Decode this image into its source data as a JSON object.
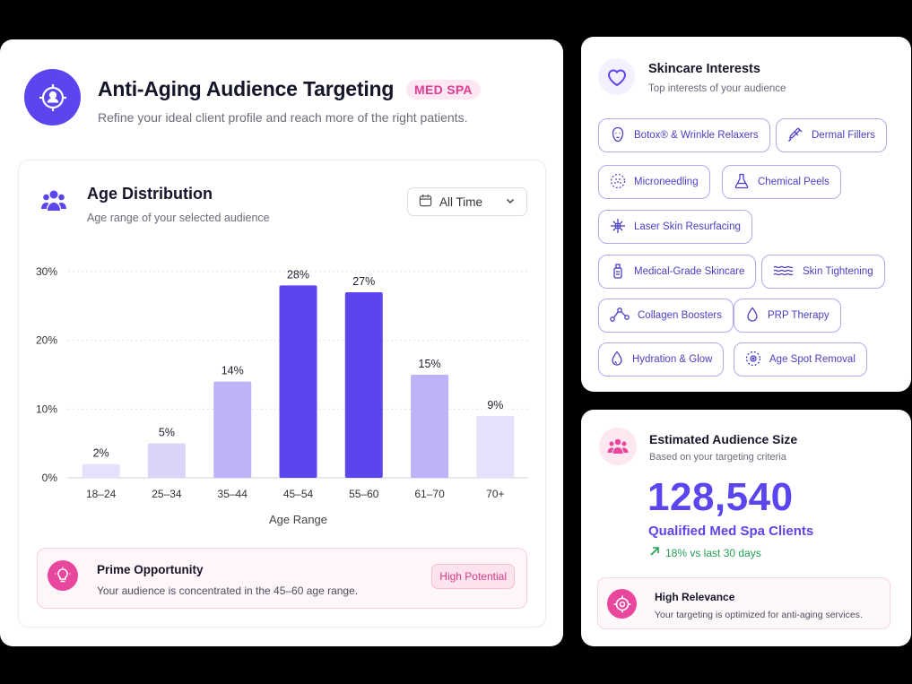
{
  "header": {
    "title": "Anti-Aging Audience Targeting",
    "badge": "MED SPA",
    "subtitle": "Refine your ideal client profile and reach more of the right patients.",
    "icon": "target-user-icon"
  },
  "age_panel": {
    "title": "Age Distribution",
    "subtitle": "Age range of your selected audience",
    "dropdown_value": "All Time",
    "icon": "users-icon"
  },
  "chart_data": {
    "type": "bar",
    "categories": [
      "18–24",
      "25–34",
      "35–44",
      "45–54",
      "55–60",
      "61–70",
      "70+"
    ],
    "values": [
      2,
      5,
      14,
      28,
      27,
      15,
      9
    ],
    "value_labels": [
      "2%",
      "5%",
      "14%",
      "28%",
      "27%",
      "15%",
      "9%"
    ],
    "xlabel": "Age Range",
    "ylabel": "",
    "ylim": [
      0,
      30
    ],
    "yticks": [
      0,
      10,
      20,
      30
    ],
    "ytick_labels": [
      "0%",
      "10%",
      "20%",
      "30%"
    ],
    "grid": true,
    "colors": [
      "#e4e1fb",
      "#d9d5fa",
      "#bcb4f6",
      "#5b45ef",
      "#5b45ef",
      "#bcb4f6",
      "#e4e1fb"
    ]
  },
  "opportunity": {
    "title": "Prime Opportunity",
    "text": "Your audience is concentrated in the 45–60 age range.",
    "badge": "High Potential",
    "icon": "lightbulb-icon"
  },
  "interests": {
    "title": "Skincare Interests",
    "subtitle": "Top interests of your audience",
    "icon": "heart-icon",
    "chips": [
      {
        "label": "Botox® & Wrinkle Relaxers",
        "icon": "face-icon"
      },
      {
        "label": "Dermal Fillers",
        "icon": "syringe-icon"
      },
      {
        "label": "Microneedling",
        "icon": "microneedle-icon"
      },
      {
        "label": "Chemical Peels",
        "icon": "flask-icon"
      },
      {
        "label": "Laser Skin Resurfacing",
        "icon": "laser-icon"
      },
      {
        "label": "Medical-Grade Skincare",
        "icon": "bottle-icon"
      },
      {
        "label": "Skin Tightening",
        "icon": "waves-icon"
      },
      {
        "label": "Collagen Boosters",
        "icon": "molecule-icon"
      },
      {
        "label": "PRP Therapy",
        "icon": "drop-icon"
      },
      {
        "label": "Hydration & Glow",
        "icon": "water-drop-icon"
      },
      {
        "label": "Age Spot Removal",
        "icon": "spot-target-icon"
      }
    ]
  },
  "audience": {
    "title": "Estimated Audience Size",
    "subtitle": "Based on your targeting criteria",
    "number": "128,540",
    "label": "Qualified Med Spa Clients",
    "trend": "18% vs last 30 days",
    "icon": "group-icon"
  },
  "relevance": {
    "title": "High Relevance",
    "text": "Your targeting is optimized for anti-aging services.",
    "icon": "target-icon"
  },
  "colors": {
    "primary": "#5b45ef",
    "pink": "#e9469e",
    "green": "#22a055"
  }
}
